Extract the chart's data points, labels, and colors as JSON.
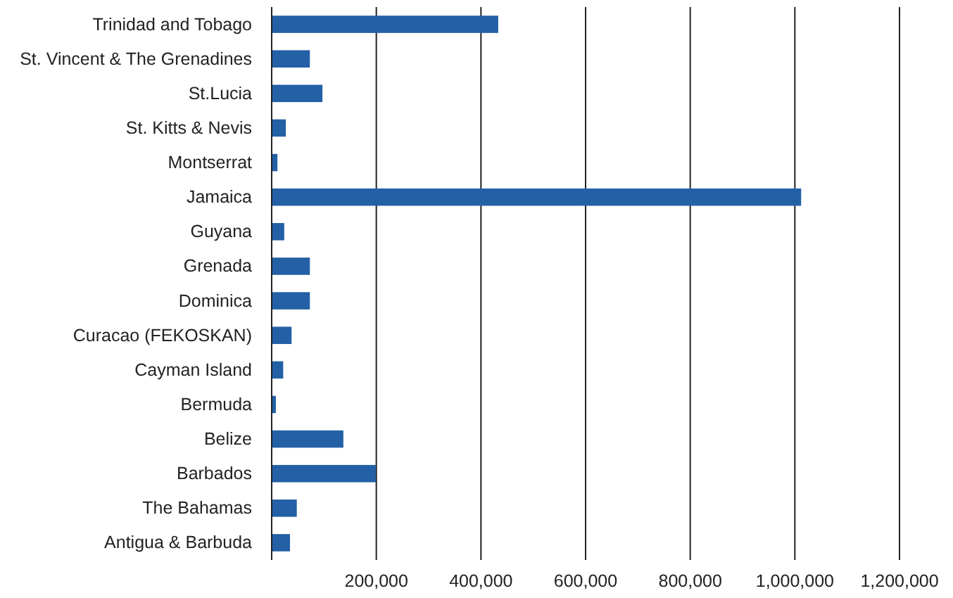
{
  "chart_data": {
    "type": "bar",
    "orientation": "horizontal",
    "categories": [
      "Trinidad and Tobago",
      "St. Vincent & The Grenadines",
      "St.Lucia",
      "St. Kitts & Nevis",
      "Montserrat",
      "Jamaica",
      "Guyana",
      "Grenada",
      "Dominica",
      "Curacao (FEKOSKAN)",
      "Cayman Island",
      "Bermuda",
      "Belize",
      "Barbados",
      "The Bahamas",
      "Antigua & Barbuda"
    ],
    "values": [
      433000,
      73000,
      97000,
      27000,
      11000,
      1012000,
      24000,
      73000,
      73000,
      38000,
      22000,
      8000,
      137000,
      199000,
      48000,
      35000
    ],
    "color": "#2360a5",
    "xlim": [
      0,
      1200000
    ],
    "xticks": [
      {
        "value": 0,
        "label": null
      },
      {
        "value": 200000,
        "label": "200,000"
      },
      {
        "value": 400000,
        "label": "400,000"
      },
      {
        "value": 600000,
        "label": "600,000"
      },
      {
        "value": 800000,
        "label": "800,000"
      },
      {
        "value": 1000000,
        "label": "1,000,000"
      },
      {
        "value": 1200000,
        "label": "1,200,000"
      }
    ],
    "grid": "x"
  }
}
